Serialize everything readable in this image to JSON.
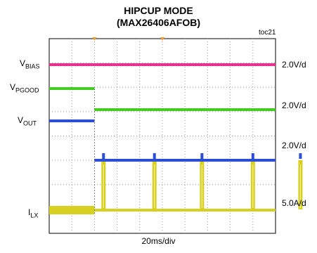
{
  "title_line1": "HIPCUP MODE",
  "title_line2": "(MAX26406AFOB)",
  "figure_tag": "toc21",
  "chart_data": {
    "type": "line",
    "title": "HIPCUP MODE (MAX26406AFOB)",
    "xlabel": "20ms/div",
    "x_unit": "ms",
    "x_range": [
      0,
      200
    ],
    "grid": true,
    "channels": [
      {
        "name": "VBIAS",
        "label_main": "V",
        "label_sub": "BIAS",
        "scale": "2.0V/d",
        "color": "#e8338e",
        "description": "high, constant"
      },
      {
        "name": "VPGOOD",
        "label_main": "V",
        "label_sub": "PGOOD",
        "scale": "2.0V/d",
        "color": "#44cc22",
        "description": "low until fault at ~40ms, then high"
      },
      {
        "name": "VOUT",
        "label_main": "V",
        "label_sub": "OUT",
        "scale": "2.0V/d",
        "color": "#2a4fd6",
        "description": "high until ~40ms, then near zero with hiccup pulses"
      },
      {
        "name": "ILX",
        "label_main": "I",
        "label_sub": "LX",
        "scale": "5.0A/d",
        "color": "#d8d020",
        "description": "current burst pulses during hiccup"
      }
    ],
    "hiccup_pulse_times_ms": [
      48,
      93,
      135,
      180,
      222
    ]
  }
}
